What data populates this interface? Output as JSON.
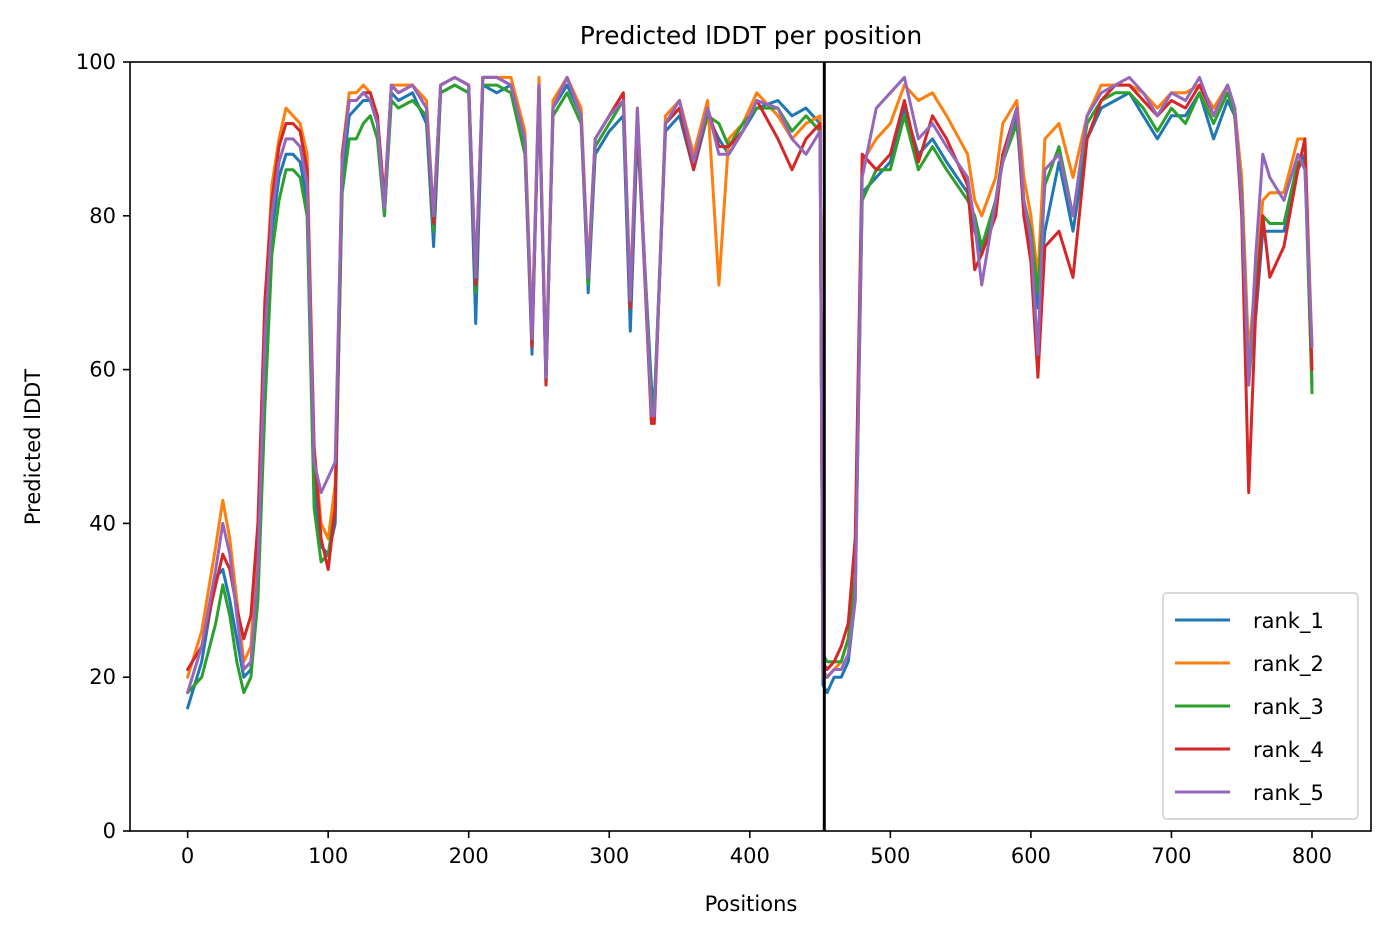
{
  "chart_data": {
    "type": "line",
    "title": "Predicted lDDT per position",
    "xlabel": "Positions",
    "ylabel": "Predicted lDDT",
    "xlim": [
      -41,
      842
    ],
    "ylim": [
      0,
      100
    ],
    "xticks": [
      "0",
      "100",
      "200",
      "300",
      "400",
      "500",
      "600",
      "700",
      "800"
    ],
    "yticks": [
      "0",
      "20",
      "40",
      "60",
      "80",
      "100"
    ],
    "grid": false,
    "legend_position": "lower-right",
    "vline": 453,
    "colors": {
      "rank_1": "#1f77b4",
      "rank_2": "#ff7f0e",
      "rank_3": "#2ca02c",
      "rank_4": "#d62728",
      "rank_5": "#9467bd"
    },
    "x": [
      0,
      10,
      20,
      25,
      30,
      35,
      40,
      45,
      50,
      55,
      60,
      65,
      70,
      75,
      80,
      85,
      90,
      95,
      100,
      105,
      110,
      115,
      120,
      125,
      130,
      135,
      140,
      145,
      150,
      160,
      170,
      175,
      180,
      190,
      200,
      205,
      210,
      220,
      230,
      240,
      245,
      250,
      255,
      260,
      270,
      280,
      285,
      290,
      300,
      310,
      315,
      320,
      330,
      332,
      340,
      350,
      360,
      370,
      378,
      385,
      395,
      405,
      420,
      430,
      440,
      450,
      452,
      455,
      460,
      465,
      470,
      475,
      480,
      490,
      500,
      510,
      520,
      530,
      540,
      555,
      560,
      565,
      575,
      580,
      590,
      595,
      600,
      605,
      610,
      620,
      630,
      640,
      650,
      660,
      670,
      680,
      690,
      700,
      710,
      720,
      730,
      740,
      745,
      750,
      755,
      760,
      765,
      770,
      780,
      790,
      795,
      800
    ],
    "series": [
      {
        "name": "rank_1",
        "values": [
          16,
          22,
          33,
          34,
          30,
          25,
          20,
          21,
          35,
          60,
          78,
          85,
          88,
          88,
          87,
          82,
          45,
          37,
          36,
          40,
          85,
          93,
          94,
          95,
          95,
          92,
          80,
          96,
          95,
          96,
          92,
          76,
          96,
          97,
          96,
          66,
          97,
          96,
          97,
          89,
          62,
          97,
          58,
          94,
          97,
          93,
          70,
          88,
          91,
          93,
          65,
          91,
          58,
          55,
          91,
          93,
          86,
          93,
          90,
          88,
          91,
          94,
          95,
          93,
          94,
          92,
          19,
          18,
          20,
          20,
          22,
          30,
          83,
          85,
          87,
          94,
          88,
          90,
          87,
          83,
          78,
          75,
          82,
          88,
          93,
          80,
          75,
          68,
          78,
          87,
          78,
          90,
          94,
          95,
          96,
          93,
          90,
          93,
          93,
          96,
          90,
          95,
          93,
          82,
          60,
          67,
          78,
          78,
          78,
          86,
          88,
          58
        ]
      },
      {
        "name": "rank_2",
        "values": [
          20,
          26,
          37,
          43,
          38,
          30,
          22,
          24,
          38,
          68,
          84,
          90,
          94,
          93,
          92,
          88,
          50,
          40,
          38,
          45,
          88,
          96,
          96,
          97,
          96,
          93,
          82,
          97,
          97,
          97,
          95,
          80,
          97,
          98,
          97,
          72,
          98,
          98,
          98,
          91,
          65,
          98,
          60,
          95,
          98,
          94,
          73,
          90,
          93,
          96,
          70,
          94,
          55,
          53,
          93,
          95,
          88,
          95,
          71,
          90,
          92,
          96,
          93,
          90,
          92,
          93,
          21,
          20,
          21,
          22,
          25,
          32,
          87,
          90,
          92,
          97,
          95,
          96,
          93,
          88,
          82,
          80,
          85,
          92,
          95,
          85,
          80,
          72,
          90,
          92,
          85,
          93,
          97,
          97,
          97,
          96,
          94,
          96,
          96,
          97,
          94,
          97,
          94,
          85,
          62,
          72,
          82,
          83,
          83,
          90,
          90,
          63
        ]
      },
      {
        "name": "rank_3",
        "values": [
          18,
          20,
          27,
          32,
          28,
          22,
          18,
          20,
          30,
          55,
          75,
          82,
          86,
          86,
          85,
          80,
          42,
          35,
          36,
          42,
          83,
          90,
          90,
          92,
          93,
          90,
          80,
          95,
          94,
          95,
          93,
          78,
          96,
          97,
          96,
          70,
          97,
          97,
          96,
          88,
          64,
          96,
          59,
          93,
          96,
          92,
          71,
          89,
          92,
          95,
          68,
          93,
          56,
          55,
          92,
          94,
          87,
          93,
          92,
          89,
          92,
          94,
          94,
          91,
          93,
          91,
          23,
          22,
          22,
          22,
          25,
          33,
          82,
          86,
          86,
          93,
          86,
          89,
          86,
          82,
          80,
          76,
          82,
          87,
          92,
          82,
          78,
          70,
          84,
          89,
          80,
          92,
          95,
          96,
          96,
          94,
          91,
          94,
          92,
          96,
          92,
          96,
          93,
          83,
          58,
          70,
          80,
          79,
          79,
          87,
          87,
          57
        ]
      },
      {
        "name": "rank_4",
        "values": [
          21,
          24,
          32,
          36,
          34,
          29,
          25,
          28,
          40,
          69,
          82,
          89,
          92,
          92,
          91,
          86,
          50,
          38,
          34,
          42,
          88,
          95,
          95,
          96,
          96,
          93,
          82,
          97,
          96,
          97,
          94,
          79,
          97,
          98,
          97,
          71,
          98,
          98,
          97,
          90,
          63,
          97,
          58,
          94,
          98,
          93,
          72,
          90,
          93,
          96,
          68,
          93,
          53,
          53,
          92,
          94,
          86,
          94,
          89,
          89,
          91,
          95,
          90,
          86,
          90,
          92,
          22,
          21,
          22,
          24,
          27,
          38,
          88,
          86,
          88,
          95,
          87,
          93,
          90,
          84,
          73,
          75,
          80,
          88,
          94,
          80,
          74,
          59,
          76,
          78,
          72,
          90,
          95,
          97,
          97,
          95,
          93,
          95,
          94,
          97,
          93,
          97,
          94,
          80,
          44,
          68,
          80,
          72,
          76,
          86,
          90,
          60
        ]
      },
      {
        "name": "rank_5",
        "values": [
          18,
          24,
          34,
          40,
          36,
          28,
          21,
          22,
          34,
          64,
          80,
          87,
          90,
          90,
          89,
          84,
          48,
          44,
          46,
          48,
          87,
          95,
          95,
          96,
          95,
          92,
          81,
          97,
          96,
          97,
          94,
          80,
          97,
          98,
          97,
          72,
          98,
          98,
          97,
          90,
          64,
          97,
          59,
          94,
          98,
          93,
          72,
          90,
          93,
          95,
          69,
          94,
          54,
          54,
          92,
          95,
          87,
          94,
          88,
          88,
          91,
          95,
          94,
          90,
          88,
          91,
          20,
          20,
          21,
          21,
          23,
          30,
          85,
          94,
          96,
          98,
          90,
          92,
          89,
          85,
          79,
          71,
          82,
          87,
          94,
          82,
          77,
          62,
          86,
          88,
          80,
          93,
          96,
          97,
          98,
          96,
          93,
          96,
          95,
          98,
          93,
          97,
          94,
          82,
          58,
          75,
          88,
          85,
          82,
          88,
          86,
          63
        ]
      }
    ]
  }
}
